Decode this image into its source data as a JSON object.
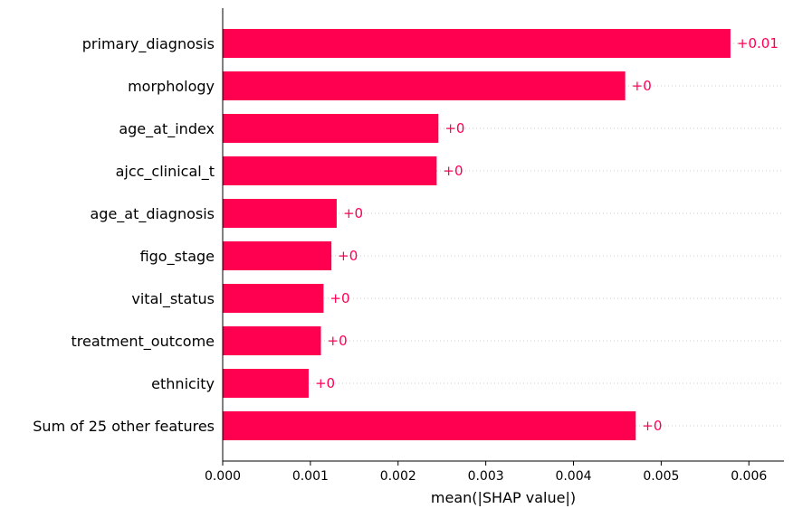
{
  "chart_data": {
    "type": "bar",
    "orientation": "horizontal",
    "categories": [
      "primary_diagnosis",
      "morphology",
      "age_at_index",
      "ajcc_clinical_t",
      "age_at_diagnosis",
      "figo_stage",
      "vital_status",
      "treatment_outcome",
      "ethnicity",
      "Sum of 25 other features"
    ],
    "values": [
      0.00579,
      0.00459,
      0.00246,
      0.00244,
      0.0013,
      0.00124,
      0.00115,
      0.00112,
      0.00098,
      0.00471
    ],
    "value_labels": [
      "+0.01",
      "+0",
      "+0",
      "+0",
      "+0",
      "+0",
      "+0",
      "+0",
      "+0",
      "+0"
    ],
    "xlabel": "mean(|SHAP value|)",
    "x_ticks": [
      "0.000",
      "0.001",
      "0.002",
      "0.003",
      "0.004",
      "0.005",
      "0.006"
    ],
    "xlim": [
      0,
      0.0064
    ],
    "bar_color": "#ff0051",
    "label_color": "#ff0051",
    "gridlines": "dotted-per-row"
  }
}
